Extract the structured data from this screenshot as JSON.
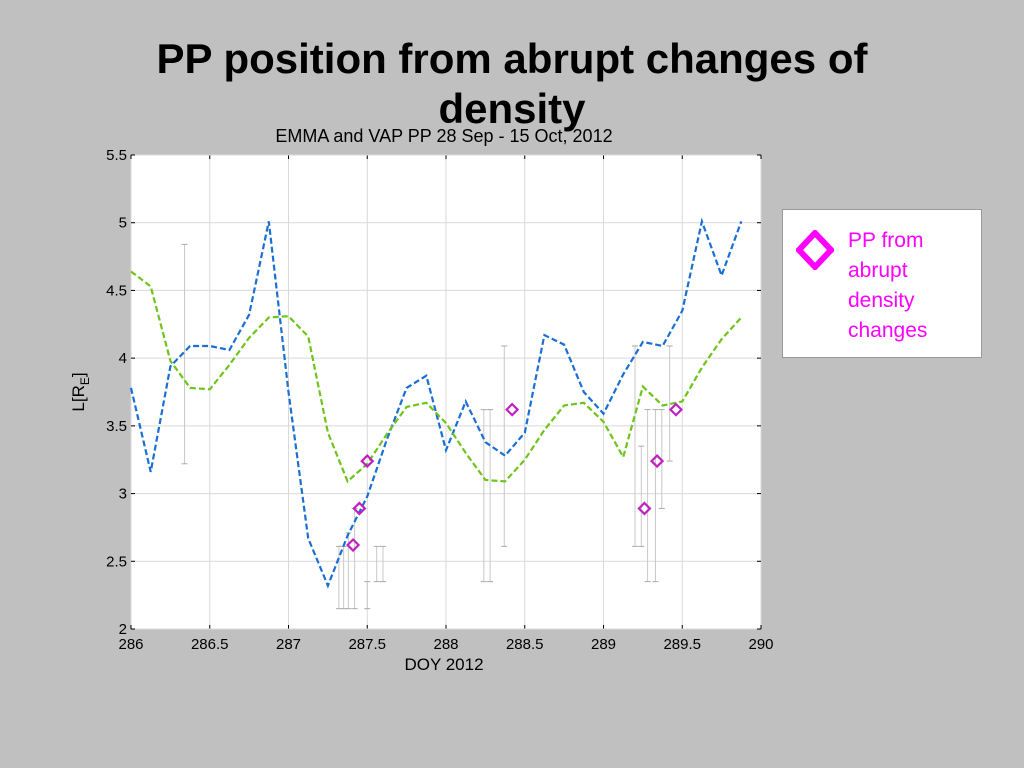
{
  "slide": {
    "title": "PP position from abrupt changes of density"
  },
  "chart_data": {
    "type": "line",
    "title": "EMMA and VAP PP 28 Sep - 15 Oct, 2012",
    "xlabel": "DOY 2012",
    "ylabel": "L[R",
    "ylabel_sub": "E",
    "ylabel_end": "]",
    "xlim": [
      286,
      290
    ],
    "ylim": [
      2,
      5.5
    ],
    "xticks": [
      286,
      286.5,
      287,
      287.5,
      288,
      288.5,
      289,
      289.5,
      290
    ],
    "xtick_labels": [
      "286",
      "286.5",
      "287",
      "287.5",
      "288",
      "288.5",
      "289",
      "289.5",
      "290"
    ],
    "yticks": [
      2,
      2.5,
      3,
      3.5,
      4,
      4.5,
      5,
      5.5
    ],
    "ytick_labels": [
      "2",
      "2.5",
      "3",
      "3.5",
      "4",
      "4.5",
      "5",
      "5.5"
    ],
    "grid": true,
    "series": [
      {
        "color": "#1a6fd4",
        "style": "dashed",
        "x": [
          286.0,
          286.125,
          286.25,
          286.375,
          286.5,
          286.625,
          286.75,
          286.875,
          287.0,
          287.125,
          287.25,
          287.375,
          287.5,
          287.625,
          287.75,
          287.875,
          288.0,
          288.125,
          288.25,
          288.375,
          288.5,
          288.625,
          288.75,
          288.875,
          289.0,
          289.125,
          289.25,
          289.375,
          289.5,
          289.625,
          289.75,
          289.875
        ],
        "y": [
          3.78,
          3.16,
          3.94,
          4.09,
          4.09,
          4.06,
          4.32,
          5.01,
          3.75,
          2.67,
          2.32,
          2.69,
          2.98,
          3.4,
          3.78,
          3.87,
          3.32,
          3.68,
          3.38,
          3.28,
          3.45,
          4.17,
          4.1,
          3.75,
          3.59,
          3.88,
          4.12,
          4.09,
          4.35,
          5.01,
          4.61,
          5.01
        ]
      },
      {
        "color": "#6ec41a",
        "style": "dashed",
        "x": [
          286.0,
          286.125,
          286.25,
          286.375,
          286.5,
          286.625,
          286.75,
          286.875,
          287.0,
          287.125,
          287.25,
          287.375,
          287.5,
          287.625,
          287.75,
          287.875,
          288.0,
          288.125,
          288.25,
          288.375,
          288.5,
          288.625,
          288.75,
          288.875,
          289.0,
          289.125,
          289.25,
          289.375,
          289.5,
          289.625,
          289.75,
          289.875
        ],
        "y": [
          4.64,
          4.53,
          3.98,
          3.78,
          3.77,
          3.95,
          4.15,
          4.3,
          4.31,
          4.16,
          3.45,
          3.09,
          3.22,
          3.44,
          3.64,
          3.67,
          3.52,
          3.3,
          3.1,
          3.09,
          3.25,
          3.47,
          3.65,
          3.67,
          3.53,
          3.27,
          3.79,
          3.65,
          3.68,
          3.93,
          4.14,
          4.3
        ]
      }
    ],
    "pp_points": {
      "marker": "diamond",
      "color": "#c020c0",
      "x": [
        287.41,
        287.45,
        287.5,
        288.42,
        289.26,
        289.34,
        289.46
      ],
      "y": [
        2.62,
        2.89,
        3.24,
        3.62,
        2.89,
        3.24,
        3.62
      ]
    },
    "error_bars": [
      {
        "x": 286.34,
        "low": 3.22,
        "high": 4.84
      },
      {
        "x": 287.32,
        "low": 2.15,
        "high": 2.61
      },
      {
        "x": 287.35,
        "low": 2.15,
        "high": 2.61
      },
      {
        "x": 287.38,
        "low": 2.15,
        "high": 2.71
      },
      {
        "x": 287.42,
        "low": 2.15,
        "high": 2.89
      },
      {
        "x": 287.5,
        "low": 2.15,
        "high": 2.35
      },
      {
        "x": 287.56,
        "low": 2.35,
        "high": 2.61
      },
      {
        "x": 287.6,
        "low": 2.35,
        "high": 2.61
      },
      {
        "x": 288.24,
        "low": 2.35,
        "high": 3.62
      },
      {
        "x": 288.28,
        "low": 2.35,
        "high": 3.62
      },
      {
        "x": 288.37,
        "low": 2.61,
        "high": 4.09
      },
      {
        "x": 289.2,
        "low": 2.61,
        "high": 4.09
      },
      {
        "x": 289.24,
        "low": 2.61,
        "high": 3.35
      },
      {
        "x": 289.28,
        "low": 2.35,
        "high": 3.62
      },
      {
        "x": 289.33,
        "low": 2.35,
        "high": 3.62
      },
      {
        "x": 289.37,
        "low": 2.89,
        "high": 3.62
      },
      {
        "x": 289.42,
        "low": 3.24,
        "high": 4.09
      }
    ],
    "legend": {
      "placement": "outside-right",
      "lines": [
        "PP from",
        "abrupt",
        "density",
        "changes"
      ],
      "color": "#ff00ff"
    }
  }
}
